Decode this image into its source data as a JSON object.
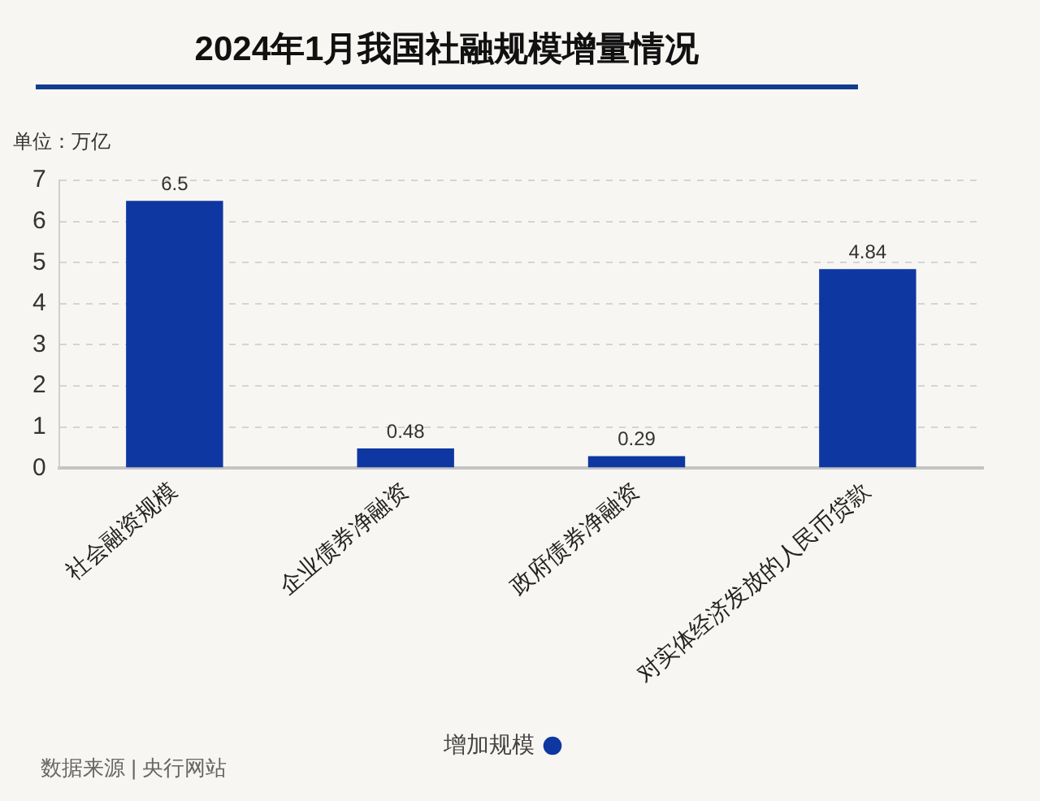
{
  "chart_data": {
    "type": "bar",
    "title": "2024年1月我国社融规模增量情况",
    "ylabel": "单位：万亿",
    "categories": [
      "社会融资规模",
      "企业债券净融资",
      "政府债券净融资",
      "对实体经济发放的人民币贷款"
    ],
    "series": [
      {
        "name": "增加规模",
        "color": "#0e37a1",
        "values": [
          6.5,
          0.48,
          0.29,
          4.84
        ]
      }
    ],
    "ylim": [
      0,
      7
    ],
    "yticks": [
      0,
      1,
      2,
      3,
      4,
      5,
      6,
      7
    ],
    "grid": "y",
    "legend": "bottom",
    "data_labels": true,
    "annotations": [
      "数据来源 | 央行网站"
    ]
  }
}
